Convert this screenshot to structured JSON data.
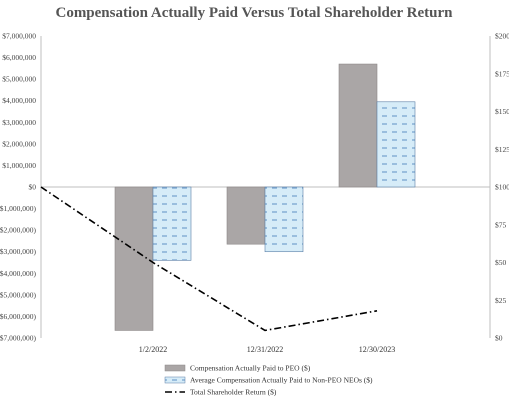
{
  "chart_data": {
    "type": "bar",
    "title": "Compensation Actually Paid Versus Total Shareholder Return",
    "categories": [
      "1/2/2022",
      "12/31/2022",
      "12/30/2023"
    ],
    "series": [
      {
        "name": "Compensation Actually Paid to PEO ($)",
        "type": "bar",
        "axis": "left",
        "color": "#aaa6a6",
        "values": [
          -6650000,
          -2650000,
          5700000
        ]
      },
      {
        "name": "Average Compensation Actually Paid to Non-PEO NEOs ($)",
        "type": "bar",
        "axis": "left",
        "color": "#d6ecf8",
        "values": [
          -3400000,
          -3000000,
          3950000
        ]
      },
      {
        "name": "Total Shareholder Return ($)",
        "type": "line",
        "axis": "right",
        "color": "#000000",
        "x": [
          "start",
          "1/2/2022",
          "12/31/2022",
          "12/30/2023"
        ],
        "values": [
          100,
          50,
          5,
          18
        ]
      }
    ],
    "left_axis": {
      "ylim": [
        -7000000,
        7000000
      ],
      "ticks": [
        "$7,000,000",
        "$6,000,000",
        "$5,000,000",
        "$4,000,000",
        "$3,000,000",
        "$2,000,000",
        "$1,000,000",
        "$0",
        "($1,000,000)",
        "($2,000,000)",
        "($3,000,000)",
        "($4,000,000)",
        "($5,000,000)",
        "($6,000,000)",
        "($7,000,000)"
      ]
    },
    "right_axis": {
      "ylim": [
        0,
        200
      ],
      "ticks": [
        "$200",
        "$175",
        "$150",
        "$125",
        "$100",
        "$75",
        "$50",
        "$25",
        "$0"
      ]
    },
    "grid": false,
    "legend_placement": "bottom-center"
  }
}
